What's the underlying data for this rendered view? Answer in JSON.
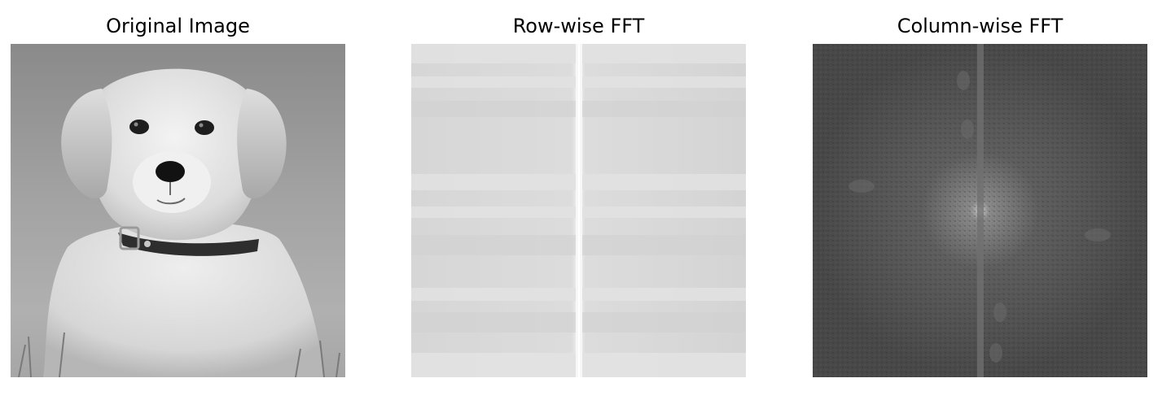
{
  "figure": {
    "panels": [
      {
        "title": "Original Image",
        "subject": "puppy-photo",
        "tone": "grayscale"
      },
      {
        "title": "Row-wise FFT",
        "subject": "row-fft-spectrum",
        "tone": "grayscale"
      },
      {
        "title": "Column-wise FFT",
        "subject": "column-fft-spectrum",
        "tone": "grayscale"
      }
    ]
  }
}
